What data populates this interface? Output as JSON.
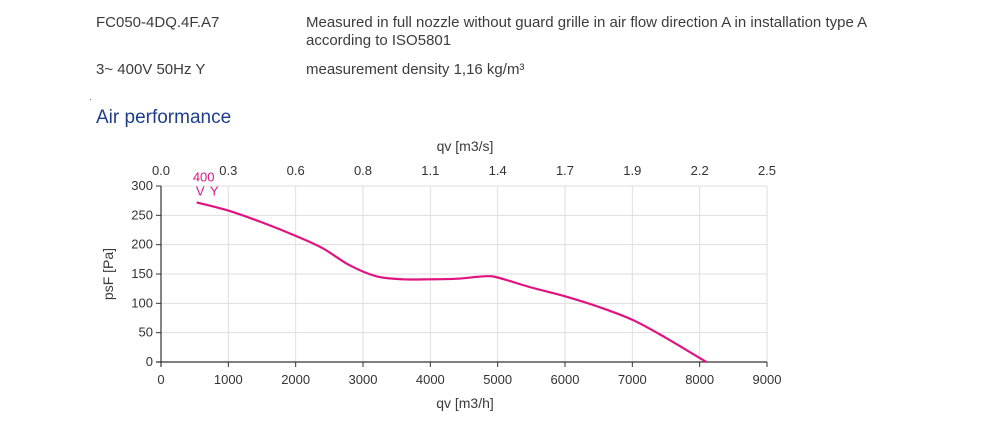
{
  "header": {
    "model": "FC050-4DQ.4F.A7",
    "description": "Measured in full nozzle without guard grille in air flow direction A in installation type A according to ISO5801",
    "voltage": "3~ 400V 50Hz Y",
    "density": "measurement density 1,16 kg/m³"
  },
  "section_title": "Air performance",
  "chart_data": {
    "type": "line",
    "title": "",
    "xlabel": "qv [m3/h]",
    "x2label": "qv [m3/s]",
    "ylabel": "psF [Pa]",
    "xlim": [
      0,
      9000
    ],
    "ylim": [
      0,
      300
    ],
    "xticks": [
      "0",
      "1000",
      "2000",
      "3000",
      "4000",
      "5000",
      "6000",
      "7000",
      "8000",
      "9000"
    ],
    "x2ticks": [
      "0.0",
      "0.3",
      "0.6",
      "0.8",
      "1.1",
      "1.4",
      "1.7",
      "1.9",
      "2.2",
      "2.5"
    ],
    "yticks": [
      "0",
      "50",
      "100",
      "150",
      "200",
      "250",
      "300"
    ],
    "grid": true,
    "series": [
      {
        "name": "400 VY",
        "label_lines": [
          "400",
          "V Y"
        ],
        "color": "#e0137f",
        "x": [
          530,
          1000,
          1500,
          2000,
          2400,
          2800,
          3200,
          3600,
          4000,
          4400,
          4800,
          5000,
          5500,
          6000,
          6500,
          7000,
          7500,
          8100
        ],
        "y": [
          272,
          258,
          238,
          215,
          194,
          165,
          146,
          141,
          141,
          142,
          146,
          144,
          127,
          112,
          94,
          72,
          41,
          0
        ]
      }
    ]
  }
}
